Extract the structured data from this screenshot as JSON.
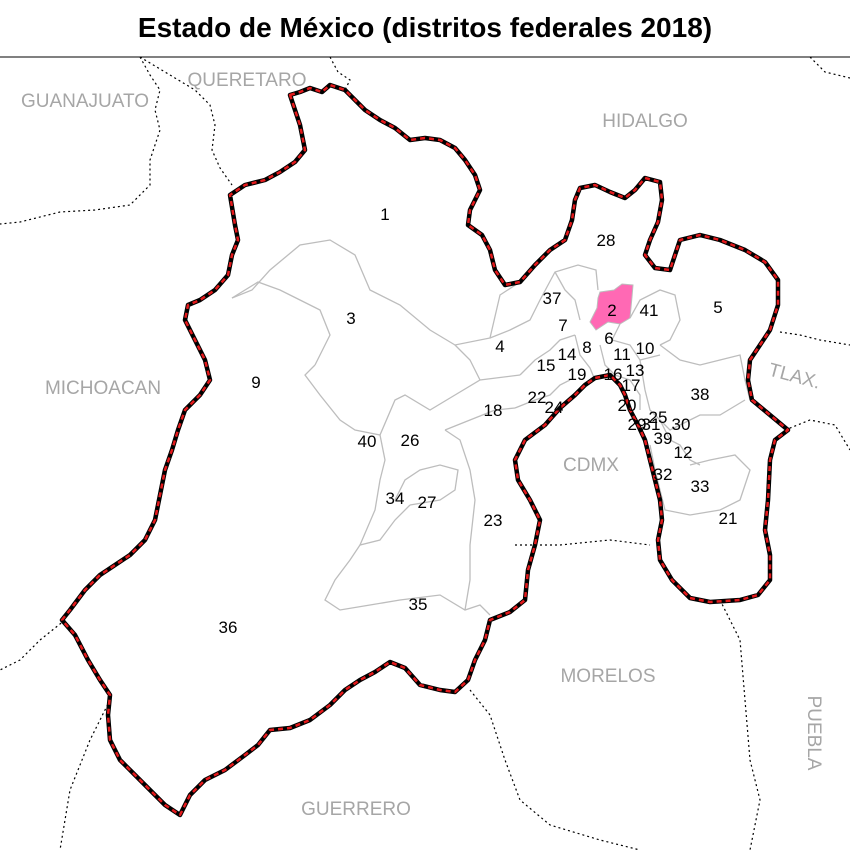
{
  "title": "Estado de México (distritos federales 2018)",
  "colors": {
    "state_border_outer": "#000000",
    "state_border_inner": "#e41a1c",
    "district_lines": "#bdbdbd",
    "highlight_fill": "#ff69b4",
    "neighbor_lines": "#000000",
    "neighbor_labels": "#a6a6a6"
  },
  "highlighted_district": "2",
  "neighbors": {
    "guanajuato": "GUANAJUATO",
    "queretaro": "QUERETARO",
    "hidalgo": "HIDALGO",
    "michoacan": "MICHOACAN",
    "tlaxcala": "TLAX.",
    "cdmx": "CDMX",
    "morelos": "MORELOS",
    "puebla": "PUEBLA",
    "guerrero": "GUERRERO"
  },
  "districts": {
    "d1": "1",
    "d2": "2",
    "d3": "3",
    "d4": "4",
    "d5": "5",
    "d6": "6",
    "d7": "7",
    "d8": "8",
    "d9": "9",
    "d10": "10",
    "d11": "11",
    "d12": "12",
    "d13": "13",
    "d14": "14",
    "d15": "15",
    "d16": "16",
    "d17": "17",
    "d18": "18",
    "d19": "19",
    "d20": "20",
    "d21": "21",
    "d22": "22",
    "d23": "23",
    "d24": "24",
    "d25": "25",
    "d26": "26",
    "d27": "27",
    "d28": "28",
    "d29": "29",
    "d30": "30",
    "d31": "31",
    "d32": "32",
    "d33": "33",
    "d34": "34",
    "d35": "35",
    "d36": "36",
    "d37": "37",
    "d38": "38",
    "d39": "39",
    "d40": "40",
    "d41": "41"
  }
}
